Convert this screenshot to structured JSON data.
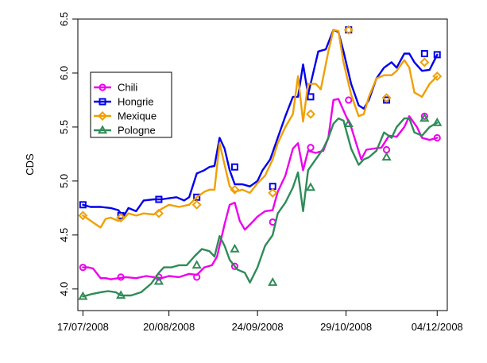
{
  "chart_data": {
    "type": "line",
    "title": "",
    "xlabel": "",
    "ylabel": "CDS",
    "xlim": [
      "2008-07-15",
      "2008-12-08"
    ],
    "ylim": [
      3.8,
      6.5
    ],
    "x_tick_labels": [
      "17/07/2008",
      "20/08/2008",
      "24/09/2008",
      "29/10/2008",
      "04/12/2008"
    ],
    "x_tick_dates": [
      "2008-07-17",
      "2008-08-20",
      "2008-09-24",
      "2008-10-29",
      "2008-12-04"
    ],
    "y_ticks": [
      4.0,
      4.5,
      5.0,
      5.5,
      6.0,
      6.5
    ],
    "y_tick_labels": [
      "4.0",
      "4.5",
      "5.0",
      "5.5",
      "6.0",
      "6.5"
    ],
    "grid": false,
    "legend_position": "top-left",
    "series": [
      {
        "name": "Chili",
        "color": "#ee00ee",
        "marker": "circle",
        "points": [
          [
            "2008-07-17",
            4.2
          ],
          [
            "2008-07-19",
            4.2
          ],
          [
            "2008-07-21",
            4.19
          ],
          [
            "2008-07-24",
            4.1
          ],
          [
            "2008-07-26",
            4.1
          ],
          [
            "2008-07-28",
            4.09
          ],
          [
            "2008-07-31",
            4.1
          ],
          [
            "2008-08-03",
            4.11
          ],
          [
            "2008-08-07",
            4.1
          ],
          [
            "2008-08-11",
            4.12
          ],
          [
            "2008-08-14",
            4.11
          ],
          [
            "2008-08-17",
            4.1
          ],
          [
            "2008-08-20",
            4.12
          ],
          [
            "2008-08-24",
            4.11
          ],
          [
            "2008-08-28",
            4.14
          ],
          [
            "2008-08-31",
            4.13
          ],
          [
            "2008-09-03",
            4.2
          ],
          [
            "2008-09-06",
            4.22
          ],
          [
            "2008-09-08",
            4.3
          ],
          [
            "2008-09-11",
            4.6
          ],
          [
            "2008-09-13",
            4.78
          ],
          [
            "2008-09-15",
            4.8
          ],
          [
            "2008-09-17",
            4.63
          ],
          [
            "2008-09-19",
            4.55
          ],
          [
            "2008-09-22",
            4.62
          ],
          [
            "2008-09-24",
            4.67
          ],
          [
            "2008-09-27",
            4.72
          ],
          [
            "2008-09-30",
            4.73
          ],
          [
            "2008-10-02",
            4.9
          ],
          [
            "2008-10-05",
            5.05
          ],
          [
            "2008-10-08",
            5.3
          ],
          [
            "2008-10-10",
            5.35
          ],
          [
            "2008-10-12",
            5.1
          ],
          [
            "2008-10-14",
            5.28
          ],
          [
            "2008-10-17",
            5.26
          ],
          [
            "2008-10-20",
            5.28
          ],
          [
            "2008-10-22",
            5.4
          ],
          [
            "2008-10-24",
            5.75
          ],
          [
            "2008-10-26",
            5.76
          ],
          [
            "2008-10-29",
            5.6
          ],
          [
            "2008-10-31",
            5.5
          ],
          [
            "2008-11-02",
            5.35
          ],
          [
            "2008-11-04",
            5.2
          ],
          [
            "2008-11-06",
            5.29
          ],
          [
            "2008-11-09",
            5.3
          ],
          [
            "2008-11-12",
            5.31
          ],
          [
            "2008-11-15",
            5.42
          ],
          [
            "2008-11-18",
            5.41
          ],
          [
            "2008-11-21",
            5.5
          ],
          [
            "2008-11-23",
            5.6
          ],
          [
            "2008-11-26",
            5.5
          ],
          [
            "2008-11-28",
            5.4
          ],
          [
            "2008-12-01",
            5.38
          ],
          [
            "2008-12-04",
            5.4
          ]
        ],
        "marked_points": [
          [
            "2008-07-17",
            4.2
          ],
          [
            "2008-08-01",
            4.11
          ],
          [
            "2008-08-16",
            4.11
          ],
          [
            "2008-08-31",
            4.11
          ],
          [
            "2008-09-15",
            4.21
          ],
          [
            "2008-09-30",
            4.62
          ],
          [
            "2008-10-15",
            5.31
          ],
          [
            "2008-10-30",
            5.75
          ],
          [
            "2008-11-14",
            5.29
          ],
          [
            "2008-11-29",
            5.6
          ],
          [
            "2008-12-14",
            5.4
          ]
        ]
      },
      {
        "name": "Hongrie",
        "color": "#0000ee",
        "marker": "square",
        "points": [
          [
            "2008-07-17",
            4.78
          ],
          [
            "2008-07-20",
            4.76
          ],
          [
            "2008-07-24",
            4.76
          ],
          [
            "2008-07-28",
            4.75
          ],
          [
            "2008-07-31",
            4.73
          ],
          [
            "2008-08-02",
            4.67
          ],
          [
            "2008-08-04",
            4.75
          ],
          [
            "2008-08-07",
            4.72
          ],
          [
            "2008-08-10",
            4.82
          ],
          [
            "2008-08-14",
            4.83
          ],
          [
            "2008-08-17",
            4.83
          ],
          [
            "2008-08-20",
            4.84
          ],
          [
            "2008-08-23",
            4.85
          ],
          [
            "2008-08-26",
            4.82
          ],
          [
            "2008-08-28",
            4.85
          ],
          [
            "2008-08-31",
            5.07
          ],
          [
            "2008-09-03",
            5.1
          ],
          [
            "2008-09-05",
            5.13
          ],
          [
            "2008-09-07",
            5.14
          ],
          [
            "2008-09-09",
            5.4
          ],
          [
            "2008-09-11",
            5.3
          ],
          [
            "2008-09-13",
            5.1
          ],
          [
            "2008-09-15",
            4.97
          ],
          [
            "2008-09-18",
            4.97
          ],
          [
            "2008-09-21",
            4.95
          ],
          [
            "2008-09-24",
            5.0
          ],
          [
            "2008-09-26",
            5.1
          ],
          [
            "2008-09-29",
            5.2
          ],
          [
            "2008-10-02",
            5.4
          ],
          [
            "2008-10-05",
            5.6
          ],
          [
            "2008-10-08",
            5.78
          ],
          [
            "2008-10-10",
            5.78
          ],
          [
            "2008-10-12",
            6.08
          ],
          [
            "2008-10-14",
            5.8
          ],
          [
            "2008-10-16",
            6.0
          ],
          [
            "2008-10-18",
            6.2
          ],
          [
            "2008-10-21",
            6.22
          ],
          [
            "2008-10-24",
            6.4
          ],
          [
            "2008-10-26",
            6.38
          ],
          [
            "2008-10-28",
            6.2
          ],
          [
            "2008-10-31",
            5.9
          ],
          [
            "2008-11-03",
            5.7
          ],
          [
            "2008-11-05",
            5.67
          ],
          [
            "2008-11-07",
            5.75
          ],
          [
            "2008-11-10",
            5.95
          ],
          [
            "2008-11-13",
            6.05
          ],
          [
            "2008-11-16",
            6.1
          ],
          [
            "2008-11-18",
            6.05
          ],
          [
            "2008-11-21",
            6.18
          ],
          [
            "2008-11-23",
            6.18
          ],
          [
            "2008-11-25",
            6.1
          ],
          [
            "2008-11-28",
            6.02
          ],
          [
            "2008-12-01",
            6.03
          ],
          [
            "2008-12-04",
            6.17
          ]
        ],
        "marked_points": [
          [
            "2008-07-17",
            4.78
          ],
          [
            "2008-08-01",
            4.68
          ],
          [
            "2008-08-16",
            4.83
          ],
          [
            "2008-08-31",
            4.85
          ],
          [
            "2008-09-15",
            5.13
          ],
          [
            "2008-09-30",
            4.95
          ],
          [
            "2008-10-15",
            5.78
          ],
          [
            "2008-10-30",
            6.4
          ],
          [
            "2008-11-14",
            5.75
          ],
          [
            "2008-11-29",
            6.18
          ],
          [
            "2008-12-14",
            6.17
          ]
        ]
      },
      {
        "name": "Mexique",
        "color": "#f0a000",
        "marker": "diamond",
        "points": [
          [
            "2008-07-17",
            4.68
          ],
          [
            "2008-07-19",
            4.65
          ],
          [
            "2008-07-22",
            4.6
          ],
          [
            "2008-07-24",
            4.57
          ],
          [
            "2008-07-26",
            4.65
          ],
          [
            "2008-07-28",
            4.66
          ],
          [
            "2008-07-31",
            4.63
          ],
          [
            "2008-08-02",
            4.65
          ],
          [
            "2008-08-04",
            4.7
          ],
          [
            "2008-08-07",
            4.68
          ],
          [
            "2008-08-10",
            4.7
          ],
          [
            "2008-08-14",
            4.69
          ],
          [
            "2008-08-17",
            4.74
          ],
          [
            "2008-08-20",
            4.78
          ],
          [
            "2008-08-24",
            4.76
          ],
          [
            "2008-08-28",
            4.78
          ],
          [
            "2008-08-31",
            4.85
          ],
          [
            "2008-09-03",
            4.9
          ],
          [
            "2008-09-05",
            4.92
          ],
          [
            "2008-09-07",
            4.92
          ],
          [
            "2008-09-09",
            5.35
          ],
          [
            "2008-09-11",
            5.15
          ],
          [
            "2008-09-13",
            4.95
          ],
          [
            "2008-09-15",
            4.9
          ],
          [
            "2008-09-18",
            4.92
          ],
          [
            "2008-09-21",
            4.89
          ],
          [
            "2008-09-24",
            4.98
          ],
          [
            "2008-09-27",
            5.05
          ],
          [
            "2008-09-30",
            5.2
          ],
          [
            "2008-10-02",
            5.35
          ],
          [
            "2008-10-05",
            5.5
          ],
          [
            "2008-10-08",
            5.62
          ],
          [
            "2008-10-10",
            5.97
          ],
          [
            "2008-10-12",
            5.55
          ],
          [
            "2008-10-14",
            5.9
          ],
          [
            "2008-10-17",
            5.9
          ],
          [
            "2008-10-19",
            5.85
          ],
          [
            "2008-10-22",
            6.2
          ],
          [
            "2008-10-24",
            6.4
          ],
          [
            "2008-10-26",
            6.39
          ],
          [
            "2008-10-28",
            6.1
          ],
          [
            "2008-10-31",
            5.8
          ],
          [
            "2008-11-03",
            5.6
          ],
          [
            "2008-11-05",
            5.62
          ],
          [
            "2008-11-07",
            5.78
          ],
          [
            "2008-11-10",
            5.95
          ],
          [
            "2008-11-13",
            5.98
          ],
          [
            "2008-11-16",
            5.98
          ],
          [
            "2008-11-18",
            6.02
          ],
          [
            "2008-11-21",
            6.12
          ],
          [
            "2008-11-23",
            6.05
          ],
          [
            "2008-11-25",
            5.82
          ],
          [
            "2008-11-28",
            5.78
          ],
          [
            "2008-12-01",
            5.9
          ],
          [
            "2008-12-04",
            5.97
          ]
        ],
        "marked_points": [
          [
            "2008-07-17",
            4.68
          ],
          [
            "2008-08-01",
            4.66
          ],
          [
            "2008-08-16",
            4.7
          ],
          [
            "2008-08-31",
            4.78
          ],
          [
            "2008-09-15",
            4.92
          ],
          [
            "2008-09-30",
            4.89
          ],
          [
            "2008-10-15",
            5.62
          ],
          [
            "2008-10-30",
            6.4
          ],
          [
            "2008-11-14",
            5.77
          ],
          [
            "2008-11-29",
            6.1
          ],
          [
            "2008-12-14",
            5.97
          ]
        ]
      },
      {
        "name": "Pologne",
        "color": "#2e8b57",
        "marker": "triangle",
        "points": [
          [
            "2008-07-17",
            3.93
          ],
          [
            "2008-07-20",
            3.95
          ],
          [
            "2008-07-24",
            3.97
          ],
          [
            "2008-07-27",
            3.98
          ],
          [
            "2008-07-30",
            3.97
          ],
          [
            "2008-08-01",
            3.94
          ],
          [
            "2008-08-05",
            3.94
          ],
          [
            "2008-08-09",
            3.97
          ],
          [
            "2008-08-13",
            4.05
          ],
          [
            "2008-08-16",
            4.15
          ],
          [
            "2008-08-18",
            4.2
          ],
          [
            "2008-08-21",
            4.2
          ],
          [
            "2008-08-24",
            4.22
          ],
          [
            "2008-08-27",
            4.22
          ],
          [
            "2008-08-30",
            4.3
          ],
          [
            "2008-09-02",
            4.37
          ],
          [
            "2008-09-05",
            4.35
          ],
          [
            "2008-09-07",
            4.3
          ],
          [
            "2008-09-09",
            4.49
          ],
          [
            "2008-09-11",
            4.4
          ],
          [
            "2008-09-13",
            4.27
          ],
          [
            "2008-09-16",
            4.18
          ],
          [
            "2008-09-19",
            4.15
          ],
          [
            "2008-09-21",
            4.06
          ],
          [
            "2008-09-24",
            4.2
          ],
          [
            "2008-09-27",
            4.4
          ],
          [
            "2008-09-30",
            4.5
          ],
          [
            "2008-10-02",
            4.7
          ],
          [
            "2008-10-05",
            4.8
          ],
          [
            "2008-10-08",
            4.94
          ],
          [
            "2008-10-10",
            5.08
          ],
          [
            "2008-10-12",
            4.72
          ],
          [
            "2008-10-14",
            5.1
          ],
          [
            "2008-10-17",
            5.2
          ],
          [
            "2008-10-20",
            5.3
          ],
          [
            "2008-10-22",
            5.4
          ],
          [
            "2008-10-24",
            5.53
          ],
          [
            "2008-10-26",
            5.58
          ],
          [
            "2008-10-28",
            5.56
          ],
          [
            "2008-10-31",
            5.3
          ],
          [
            "2008-11-03",
            5.15
          ],
          [
            "2008-11-05",
            5.2
          ],
          [
            "2008-11-07",
            5.22
          ],
          [
            "2008-11-10",
            5.28
          ],
          [
            "2008-11-13",
            5.45
          ],
          [
            "2008-11-16",
            5.4
          ],
          [
            "2008-11-18",
            5.5
          ],
          [
            "2008-11-21",
            5.58
          ],
          [
            "2008-11-23",
            5.58
          ],
          [
            "2008-11-25",
            5.45
          ],
          [
            "2008-11-28",
            5.42
          ],
          [
            "2008-12-01",
            5.5
          ],
          [
            "2008-12-04",
            5.54
          ]
        ],
        "marked_points": [
          [
            "2008-07-17",
            3.93
          ],
          [
            "2008-08-01",
            3.94
          ],
          [
            "2008-08-16",
            4.07
          ],
          [
            "2008-08-31",
            4.22
          ],
          [
            "2008-09-15",
            4.37
          ],
          [
            "2008-09-30",
            4.06
          ],
          [
            "2008-10-15",
            4.94
          ],
          [
            "2008-10-30",
            5.53
          ],
          [
            "2008-11-14",
            5.22
          ],
          [
            "2008-11-29",
            5.58
          ],
          [
            "2008-12-14",
            5.54
          ]
        ]
      }
    ]
  }
}
